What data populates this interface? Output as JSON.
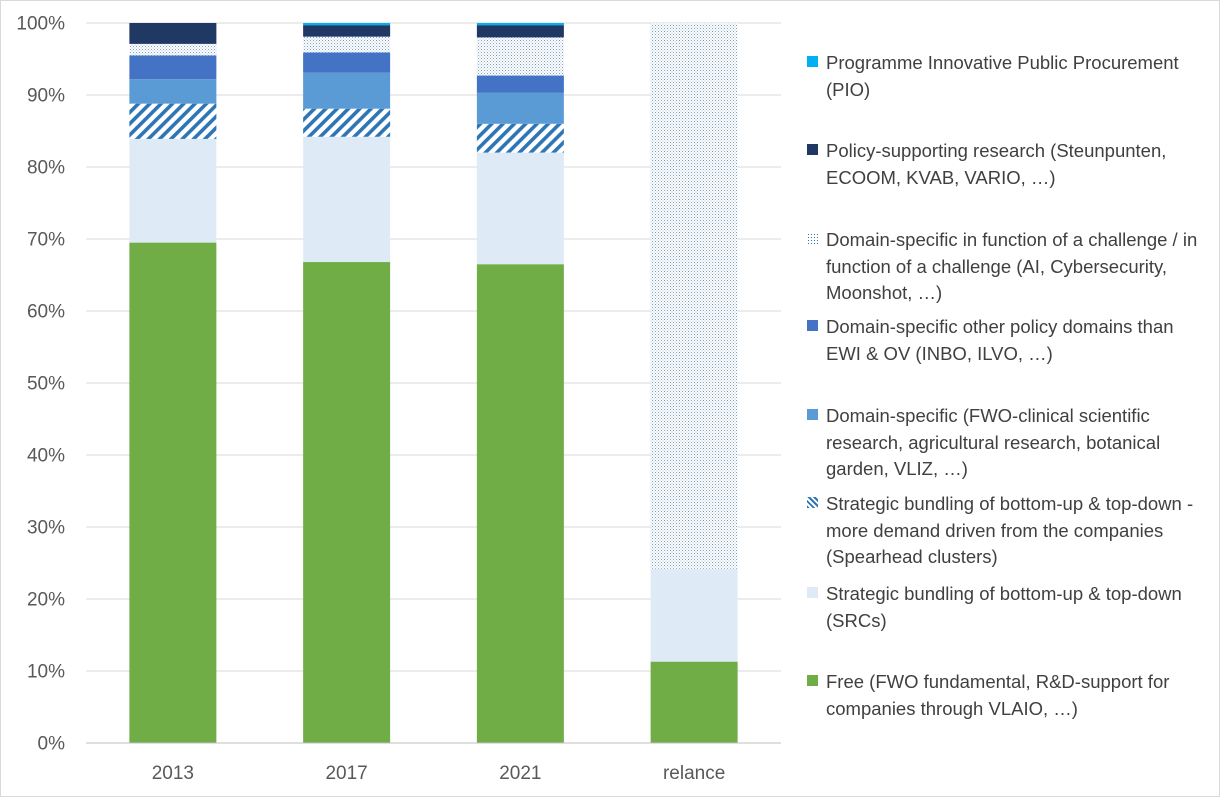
{
  "chart_data": {
    "type": "bar",
    "stacked": true,
    "percent": true,
    "categories": [
      "2013",
      "2017",
      "2021",
      "relance"
    ],
    "ylim": [
      0,
      100
    ],
    "yticks": [
      "0%",
      "10%",
      "20%",
      "30%",
      "40%",
      "50%",
      "60%",
      "70%",
      "80%",
      "90%",
      "100%"
    ],
    "series": [
      {
        "name": "Free (FWO fundamental, R&D-support for companies through VLAIO, …)",
        "color": "#70ad47",
        "pattern": "solid",
        "values": [
          69.5,
          66.8,
          66.5,
          11.3
        ]
      },
      {
        "name": "Strategic bundling of bottom-up & top-down (SRCs)",
        "color": "#deebf7",
        "pattern": "solid",
        "values": [
          14.4,
          17.4,
          15.5,
          12.9
        ]
      },
      {
        "name": "Strategic bundling of bottom-up & top-down - more demand driven from the companies (Spearhead clusters)",
        "color": "#2e75b6",
        "pattern": "diagonal",
        "values": [
          4.9,
          3.9,
          4.0,
          0.0
        ]
      },
      {
        "name": "Domain-specific (FWO-clinical scientific research, agricultural research, botanical garden, VLIZ, …)",
        "color": "#5b9bd5",
        "pattern": "solid",
        "values": [
          3.4,
          5.0,
          4.3,
          0.0
        ]
      },
      {
        "name": "Domain-specific other policy domains than EWI & OV  (INBO, ILVO, …)",
        "color": "#4472c4",
        "pattern": "solid",
        "values": [
          3.3,
          2.8,
          2.4,
          0.0
        ]
      },
      {
        "name": "Domain-specific in function of a challenge / in function of a challenge (AI, Cybersecurity, Moonshot, …)",
        "color": "#2e75b6",
        "pattern": "dotted",
        "values": [
          1.6,
          2.2,
          5.3,
          75.8
        ]
      },
      {
        "name": "Policy-supporting research (Steunpunten, ECOOM, KVAB, VARIO, …)",
        "color": "#203864",
        "pattern": "solid",
        "values": [
          2.9,
          1.6,
          1.7,
          0.0
        ]
      },
      {
        "name": "Programme Innovative Public Procurement (PIO)",
        "color": "#00b0f0",
        "pattern": "solid",
        "values": [
          0.0,
          0.3,
          0.3,
          0.0
        ]
      }
    ],
    "legend_position": "right"
  },
  "legend_items": [
    {
      "label": "Programme Innovative Public Procurement (PIO)",
      "series_index": 7,
      "lines": 2
    },
    {
      "label": "Policy-supporting research (Steunpunten, ECOOM, KVAB, VARIO, …)",
      "series_index": 6,
      "lines": 2
    },
    {
      "label": "Domain-specific in function of a challenge / in function of a challenge (AI, Cybersecurity, Moonshot, …)",
      "series_index": 5,
      "lines": 3
    },
    {
      "label": "Domain-specific other policy domains than EWI & OV  (INBO, ILVO, …)",
      "series_index": 4,
      "lines": 2
    },
    {
      "label": "Domain-specific (FWO-clinical scientific research, agricultural research, botanical garden, VLIZ, …)",
      "series_index": 3,
      "lines": 3
    },
    {
      "label": "Strategic bundling of bottom-up & top-down - more demand driven from the companies (Spearhead clusters)",
      "series_index": 2,
      "lines": 3
    },
    {
      "label": "Strategic bundling of bottom-up & top-down (SRCs)",
      "series_index": 1,
      "lines": 2
    },
    {
      "label": "Free (FWO fundamental, R&D-support for companies through VLAIO, …)",
      "series_index": 0,
      "lines": 2
    }
  ]
}
